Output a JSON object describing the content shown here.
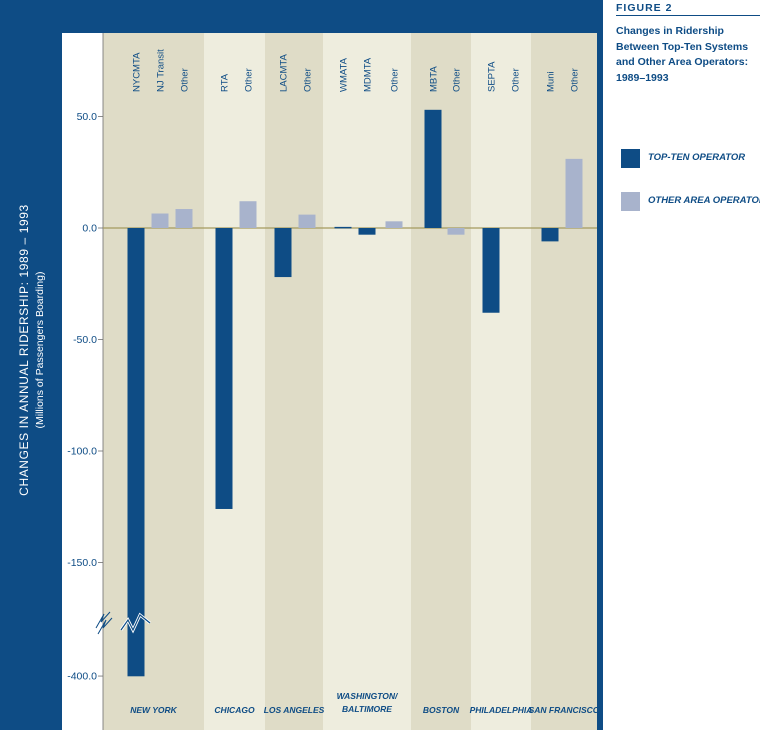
{
  "figure": {
    "number": "FIGURE 2",
    "title": "Changes in Ridership Between Top-Ten Systems and Other Area Operators: 1989–1993"
  },
  "legend": [
    {
      "label": "TOP-TEN OPERATOR",
      "color": "#0e4c85"
    },
    {
      "label": "OTHER AREA OPERATORS",
      "color": "#a8b3cc"
    }
  ],
  "chart_data": {
    "type": "bar",
    "ylabel": "CHANGES IN ANNUAL RIDERSHIP: 1989 – 1993",
    "ylabel_sub": "(Millions of Passengers Boarding)",
    "yticks": [
      "50.0",
      "0.0",
      "-50.0",
      "-100.0",
      "-150.0",
      "-400.0"
    ],
    "axis_break": "between -150.0 and -400.0",
    "regions": [
      {
        "name": "NEW YORK",
        "bars": [
          {
            "label": "NYCMTA",
            "kind": "top-ten",
            "value": -401
          },
          {
            "label": "NJ Transit",
            "kind": "other",
            "value": 6.5
          },
          {
            "label": "Other",
            "kind": "other",
            "value": 8.5
          }
        ]
      },
      {
        "name": "CHICAGO",
        "bars": [
          {
            "label": "RTA",
            "kind": "top-ten",
            "value": -126
          },
          {
            "label": "Other",
            "kind": "other",
            "value": 12
          }
        ]
      },
      {
        "name": "LOS ANGELES",
        "bars": [
          {
            "label": "LACMTA",
            "kind": "top-ten",
            "value": -22
          },
          {
            "label": "Other",
            "kind": "other",
            "value": 6
          }
        ]
      },
      {
        "name": "WASHINGTON/ BALTIMORE",
        "bars": [
          {
            "label": "WMATA",
            "kind": "top-ten",
            "value": 0.5
          },
          {
            "label": "MDMTA",
            "kind": "top-ten",
            "value": -3
          },
          {
            "label": "Other",
            "kind": "other",
            "value": 3
          }
        ]
      },
      {
        "name": "BOSTON",
        "bars": [
          {
            "label": "MBTA",
            "kind": "top-ten",
            "value": 53
          },
          {
            "label": "Other",
            "kind": "other",
            "value": -3
          }
        ]
      },
      {
        "name": "PHILADELPHIA",
        "bars": [
          {
            "label": "SEPTA",
            "kind": "top-ten",
            "value": -38
          },
          {
            "label": "Other",
            "kind": "other",
            "value": 0
          }
        ]
      },
      {
        "name": "SAN FRANCISCO",
        "bars": [
          {
            "label": "Muni",
            "kind": "top-ten",
            "value": -6
          },
          {
            "label": "Other",
            "kind": "other",
            "value": 31
          }
        ]
      }
    ],
    "colors": {
      "frame": "#0e4c85",
      "top_ten": "#0e4c85",
      "other": "#a8b3cc",
      "band_dark": "#dfdcc7",
      "band_light": "#eeedde",
      "zero_line": "#a59a5f"
    }
  }
}
